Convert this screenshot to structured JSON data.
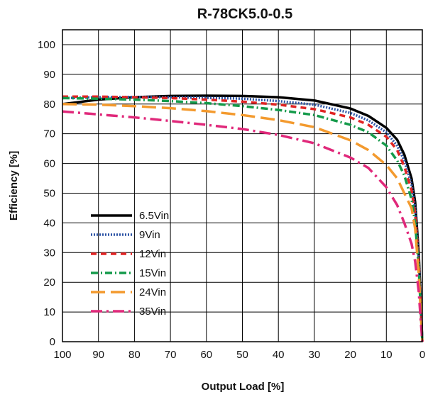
{
  "chart_data": {
    "type": "line",
    "title": "R-78CK5.0-0.5",
    "xlabel": "Output Load [%]",
    "ylabel": "Efficiency [%]",
    "xlim": [
      100,
      0
    ],
    "ylim": [
      0,
      105
    ],
    "x_ticks": [
      100,
      90,
      80,
      70,
      60,
      50,
      40,
      30,
      20,
      10,
      0
    ],
    "y_ticks": [
      0,
      10,
      20,
      30,
      40,
      50,
      60,
      70,
      80,
      90,
      100
    ],
    "x_tick_labels": [
      "100",
      "90",
      "80",
      "70",
      "60",
      "50",
      "40",
      "30",
      "20",
      "10",
      "0"
    ],
    "y_tick_labels": [
      "0",
      "10",
      "20",
      "30",
      "40",
      "50",
      "60",
      "70",
      "80",
      "90",
      "100"
    ],
    "grid": true,
    "legend_position": "bottom-left",
    "series": [
      {
        "name": "6.5Vin",
        "color": "#000000",
        "style": "solid",
        "x": [
          100,
          90,
          80,
          70,
          60,
          50,
          40,
          30,
          20,
          15,
          10,
          7,
          5,
          3,
          2,
          1,
          0.5,
          0
        ],
        "y": [
          80,
          81.5,
          82.3,
          82.7,
          82.8,
          82.7,
          82.3,
          81.2,
          78.5,
          76,
          72,
          68,
          63,
          55,
          47,
          30,
          15,
          0
        ]
      },
      {
        "name": "9Vin",
        "color": "#2e55a6",
        "style": "dotted",
        "x": [
          100,
          90,
          80,
          70,
          60,
          50,
          40,
          30,
          20,
          15,
          10,
          7,
          5,
          3,
          2,
          1,
          0.5,
          0
        ],
        "y": [
          82,
          82.3,
          82.4,
          82.3,
          82.1,
          81.8,
          81,
          79.8,
          77,
          74.5,
          70.5,
          66,
          61,
          53,
          45,
          28,
          14,
          0
        ]
      },
      {
        "name": "12Vin",
        "color": "#e02424",
        "style": "dashed",
        "x": [
          100,
          90,
          80,
          70,
          60,
          50,
          40,
          30,
          20,
          15,
          10,
          7,
          5,
          3,
          2,
          1,
          0.5,
          0
        ],
        "y": [
          82.5,
          82.5,
          82.3,
          82,
          81.5,
          80.8,
          79.8,
          78.3,
          75.5,
          73,
          69,
          64.5,
          59,
          51,
          43,
          27,
          13,
          0
        ]
      },
      {
        "name": "15Vin",
        "color": "#149a4a",
        "style": "dashdot",
        "x": [
          100,
          90,
          80,
          70,
          60,
          50,
          40,
          30,
          20,
          15,
          10,
          7,
          5,
          3,
          2,
          1,
          0.5,
          0
        ],
        "y": [
          82,
          81.8,
          81.5,
          81,
          80.3,
          79.3,
          78,
          76.3,
          73,
          70.5,
          66,
          61,
          56,
          48,
          40,
          25,
          12,
          0
        ]
      },
      {
        "name": "24Vin",
        "color": "#f39a2e",
        "style": "longdash",
        "x": [
          100,
          90,
          80,
          70,
          60,
          50,
          40,
          30,
          20,
          15,
          10,
          7,
          5,
          3,
          2,
          1,
          0.5,
          0
        ],
        "y": [
          80,
          79.8,
          79.3,
          78.6,
          77.6,
          76.3,
          74.6,
          72.2,
          67.8,
          64.5,
          59.5,
          55,
          50,
          45,
          38,
          23,
          11,
          0
        ]
      },
      {
        "name": "35Vin",
        "color": "#e0287a",
        "style": "dashdot-long",
        "x": [
          100,
          90,
          80,
          70,
          60,
          50,
          40,
          30,
          20,
          15,
          10,
          7,
          5,
          3,
          2,
          1,
          0.5,
          0
        ],
        "y": [
          77.5,
          76.5,
          75.5,
          74.3,
          73,
          71.6,
          69.6,
          66.8,
          62,
          58.5,
          52,
          46,
          40,
          33,
          27,
          17,
          8,
          0
        ]
      }
    ]
  }
}
